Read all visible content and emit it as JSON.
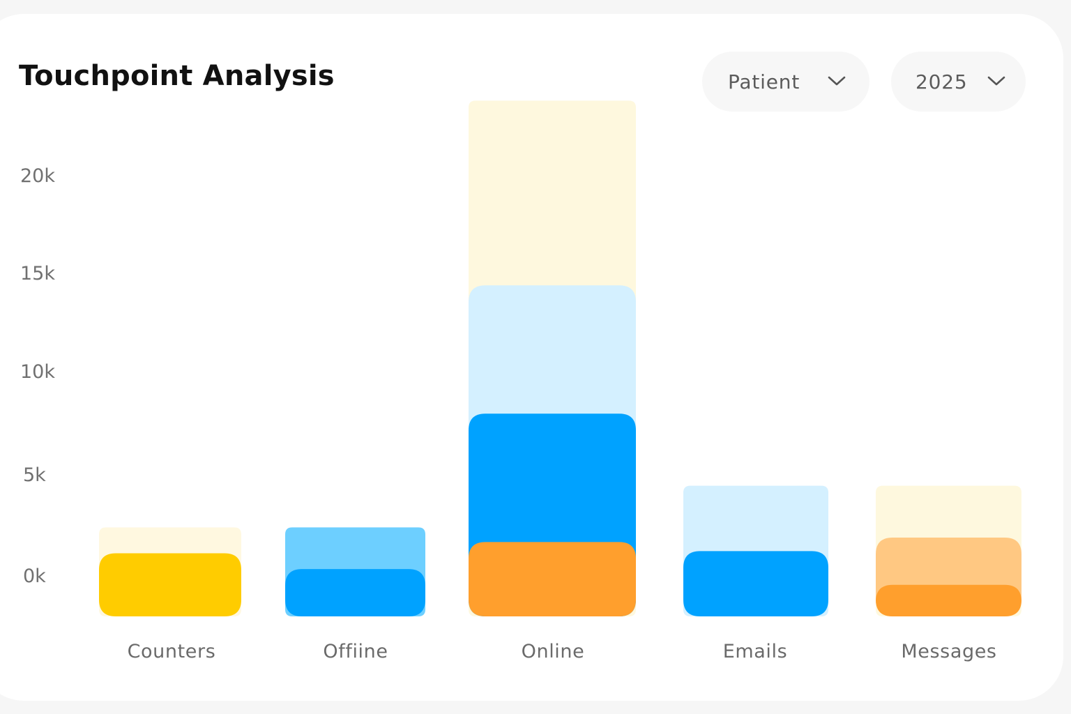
{
  "header": {
    "title": "Touchpoint Analysis"
  },
  "filters": {
    "audience": {
      "selected": "Patient",
      "icon": "chevron-down-icon"
    },
    "year": {
      "selected": "2025",
      "icon": "chevron-down-icon"
    }
  },
  "chart_data": {
    "type": "bar",
    "stacked": true,
    "title": "Touchpoint Analysis",
    "categories": [
      "Counters",
      "Offiine",
      "Online",
      "Emails",
      "Messages"
    ],
    "y_ticks": [
      "0k",
      "5k",
      "10k",
      "15k",
      "20k"
    ],
    "y_tick_values": [
      0,
      5000,
      10000,
      15000,
      20000
    ],
    "ylim": [
      0,
      21000
    ],
    "grid": false,
    "legend": "none",
    "bars": [
      {
        "category": "Counters",
        "segments": [
          {
            "value": 2800,
            "color": "#ffcc00"
          },
          {
            "value": 1150,
            "color": "#fff8e0"
          }
        ]
      },
      {
        "category": "Offiine",
        "segments": [
          {
            "value": 2100,
            "color": "#00a2ff"
          },
          {
            "value": 1850,
            "color": "#6dcfff"
          }
        ]
      },
      {
        "category": "Online",
        "segments": [
          {
            "value": 3300,
            "color": "#ff9f2d"
          },
          {
            "value": 5700,
            "color": "#00a2ff"
          },
          {
            "value": 5700,
            "color": "#d4f0ff"
          },
          {
            "value": 8200,
            "color": "#fef8de"
          }
        ]
      },
      {
        "category": "Emails",
        "segments": [
          {
            "value": 2900,
            "color": "#00a2ff"
          },
          {
            "value": 2900,
            "color": "#d4f0ff"
          }
        ]
      },
      {
        "category": "Messages",
        "segments": [
          {
            "value": 1400,
            "color": "#ff9f2d"
          },
          {
            "value": 2100,
            "color": "#ffc882"
          },
          {
            "value": 2300,
            "color": "#fef8de"
          }
        ]
      }
    ]
  }
}
